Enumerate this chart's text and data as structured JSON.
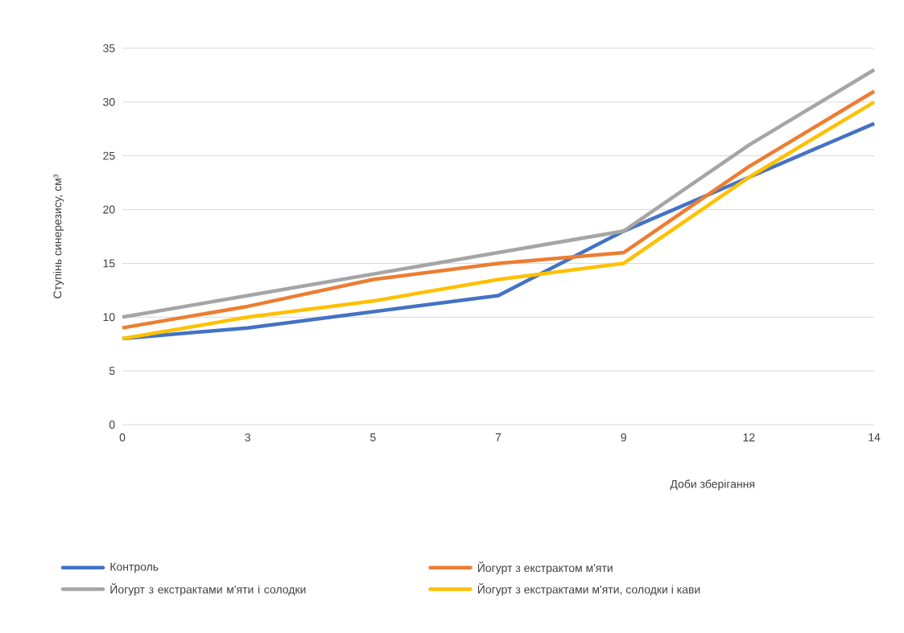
{
  "chart_data": {
    "type": "line",
    "xlabel": "Доби зберігання",
    "ylabel": "Ступінь синерезису, см³",
    "categories": [
      "0",
      "3",
      "5",
      "7",
      "9",
      "12",
      "14"
    ],
    "series": [
      {
        "name": "Контроль",
        "color": "#4472c4",
        "values": [
          8,
          9,
          10.5,
          12,
          18,
          23,
          28
        ]
      },
      {
        "name": "Йогурт з екстрактом м'яти",
        "color": "#ed7d31",
        "values": [
          9,
          11,
          13.5,
          15,
          16,
          24,
          31
        ]
      },
      {
        "name": "Йогурт з екстрактами м'яти і солодки",
        "color": "#a5a5a5",
        "values": [
          10,
          12,
          14,
          16,
          18,
          26,
          33
        ]
      },
      {
        "name": "Йогурт з екстрактами м'яти, солодки і кави",
        "color": "#ffc000",
        "values": [
          8,
          10,
          11.5,
          13.5,
          15,
          23,
          30
        ]
      }
    ],
    "ylim": [
      0,
      35
    ],
    "yticks": [
      0,
      5,
      10,
      15,
      20,
      25,
      30,
      35
    ],
    "grid": "y",
    "legend": "bottom"
  }
}
